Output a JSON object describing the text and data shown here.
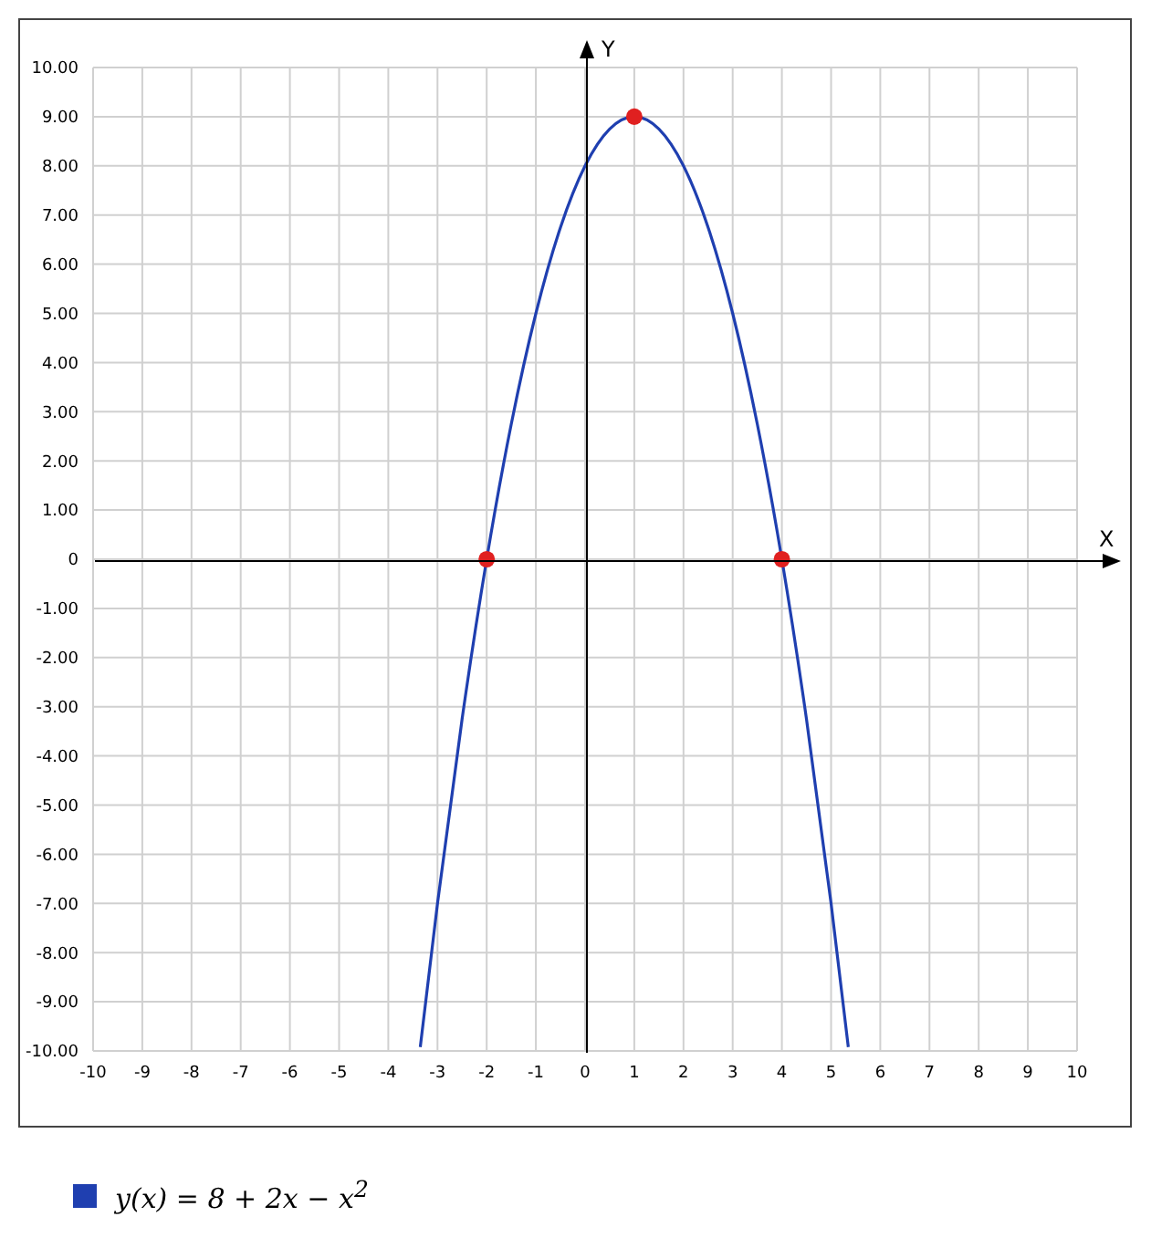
{
  "chart_data": {
    "type": "line",
    "xlabel": "X",
    "ylabel": "Y",
    "xlim": [
      -10,
      10
    ],
    "ylim": [
      -10,
      10
    ],
    "xticks": [
      -10,
      -9,
      -8,
      -7,
      -6,
      -5,
      -4,
      -3,
      -2,
      -1,
      0,
      1,
      2,
      3,
      4,
      5,
      6,
      7,
      8,
      9,
      10
    ],
    "yticks": [
      {
        "value": 10,
        "label": "10.00"
      },
      {
        "value": 9,
        "label": "9.00"
      },
      {
        "value": 8,
        "label": "8.00"
      },
      {
        "value": 7,
        "label": "7.00"
      },
      {
        "value": 6,
        "label": "6.00"
      },
      {
        "value": 5,
        "label": "5.00"
      },
      {
        "value": 4,
        "label": "4.00"
      },
      {
        "value": 3,
        "label": "3.00"
      },
      {
        "value": 2,
        "label": "2.00"
      },
      {
        "value": 1,
        "label": "1.00"
      },
      0,
      {
        "value": -1,
        "label": "-1.00"
      },
      {
        "value": -2,
        "label": "-2.00"
      },
      {
        "value": -3,
        "label": "-3.00"
      },
      {
        "value": -4,
        "label": "-4.00"
      },
      {
        "value": -5,
        "label": "-5.00"
      },
      {
        "value": -6,
        "label": "-6.00"
      },
      {
        "value": -7,
        "label": "-7.00"
      },
      {
        "value": -8,
        "label": "-8.00"
      },
      {
        "value": -9,
        "label": "-9.00"
      },
      {
        "value": -10,
        "label": "-10.00"
      }
    ],
    "grid": true,
    "legend": "bottom",
    "series": [
      {
        "name": "y(x) = 8 + 2x − x$^{2}$",
        "color": "#1f3fb0",
        "x": [
          -3.35,
          -3,
          -2.5,
          -2,
          -1.5,
          -1,
          -0.5,
          0,
          0.5,
          1,
          1.5,
          2,
          2.5,
          3,
          3.5,
          4,
          4.5,
          5,
          5.35
        ],
        "values": [
          -9.92,
          -7,
          -3.25,
          0,
          2.75,
          5,
          6.75,
          8,
          8.75,
          9,
          8.75,
          8,
          6.75,
          5,
          2.75,
          0,
          -3.25,
          -7,
          -9.92
        ]
      },
      {
        "type": "scatter",
        "color": "#e02020",
        "marker": "circle",
        "x": [
          -2,
          1,
          4
        ],
        "values": [
          0,
          9,
          0
        ]
      }
    ]
  }
}
